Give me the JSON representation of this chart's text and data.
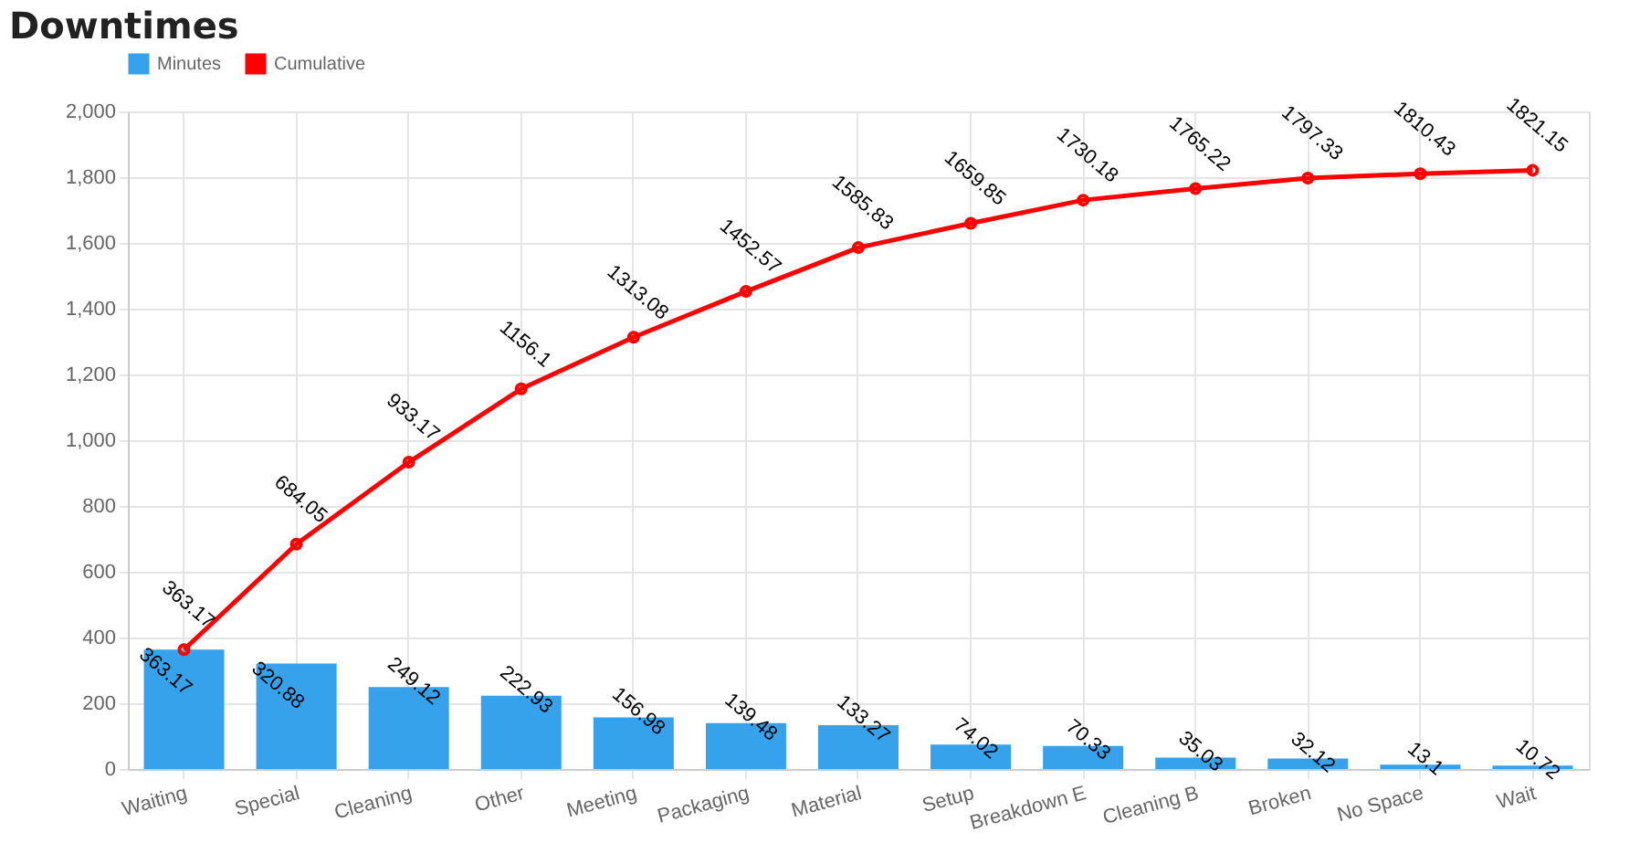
{
  "chart_data": {
    "type": "bar",
    "title": "Downtimes",
    "categories": [
      "Waiting",
      "Special",
      "Cleaning",
      "Other",
      "Meeting",
      "Packaging",
      "Material",
      "Setup",
      "Breakdown E",
      "Cleaning  B",
      "Broken",
      "No  Space",
      "Wait"
    ],
    "series": [
      {
        "name": "Minutes",
        "type": "bar",
        "color": "#36a2eb",
        "values": [
          363.17,
          320.88,
          249.12,
          222.93,
          156.98,
          139.48,
          133.27,
          74.02,
          70.33,
          35.03,
          32.12,
          13.1,
          10.72
        ]
      },
      {
        "name": "Cumulative",
        "type": "line",
        "color": "#ff0000",
        "values": [
          363.17,
          684.05,
          933.17,
          1156.1,
          1313.08,
          1452.57,
          1585.83,
          1659.85,
          1730.18,
          1765.22,
          1797.33,
          1810.43,
          1821.15
        ]
      }
    ],
    "ylim": [
      0,
      2000
    ],
    "yticks": [
      0,
      200,
      400,
      600,
      800,
      {
        "value": 1000,
        "label": "1,000"
      },
      {
        "value": 1200,
        "label": "1,200"
      },
      {
        "value": 1400,
        "label": "1,400"
      },
      {
        "value": 1600,
        "label": "1,600"
      },
      {
        "value": 1800,
        "label": "1,800"
      },
      {
        "value": 2000,
        "label": "2,000"
      }
    ],
    "grid": true,
    "legend": "top",
    "marker": "circle",
    "line_style": "solid",
    "data_labels": true
  }
}
